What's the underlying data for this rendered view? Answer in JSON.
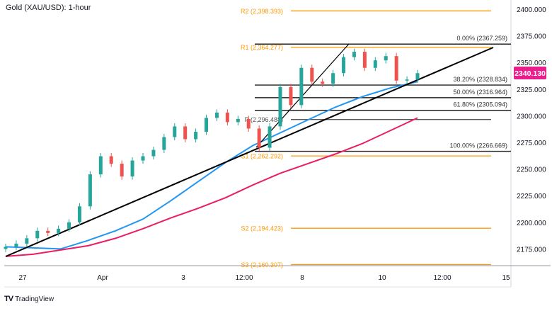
{
  "header": {
    "title": "Gold (XAU/USD): 1-hour"
  },
  "footer": {
    "brand": "TradingView"
  },
  "chart_data": {
    "type": "line",
    "title": "Gold (XAU/USD): 1-hour",
    "ylim": [
      2160,
      2408
    ],
    "y_ticks": [
      "2400.000",
      "2375.000",
      "2350.000",
      "2325.000",
      "2300.000",
      "2275.000",
      "2250.000",
      "2225.000",
      "2200.000",
      "2175.000"
    ],
    "x_ticks": [
      "27",
      "Apr",
      "3",
      "12:00",
      "8",
      "10",
      "12:00",
      "15"
    ],
    "last_price": "2340.130",
    "closes": [
      2177,
      2180,
      2185,
      2192,
      2190,
      2194,
      2200,
      2215,
      2245,
      2262,
      2255,
      2243,
      2258,
      2262,
      2268,
      2280,
      2290,
      2278,
      2285,
      2298,
      2303,
      2294,
      2297,
      2288,
      2270,
      2290,
      2327,
      2310,
      2345,
      2332,
      2330,
      2340,
      2355,
      2360,
      2345,
      2352,
      2356,
      2333,
      2334,
      2340
    ],
    "series": [
      {
        "color": "#2196f3",
        "values": [
          2177,
          2176,
          2175,
          2183,
          2192,
          2203,
          2220,
          2238,
          2256,
          2272,
          2284,
          2296,
          2308,
          2318,
          2326,
          2332
        ]
      },
      {
        "color": "#e91e63",
        "values": [
          2168,
          2170,
          2174,
          2178,
          2185,
          2194,
          2204,
          2213,
          2223,
          2235,
          2246,
          2255,
          2264,
          2274,
          2286,
          2298
        ]
      }
    ],
    "fib_levels": [
      {
        "label": "0.00% (2367.259)",
        "value": 2367.259
      },
      {
        "label": "38.20% (2328.834)",
        "value": 2328.834
      },
      {
        "label": "50.00% (2316.964)",
        "value": 2316.964
      },
      {
        "label": "61.80% (2305.094)",
        "value": 2305.094
      },
      {
        "label": "100.00% (2266.669)",
        "value": 2266.669
      }
    ],
    "pivots": [
      {
        "label": "R2 (2,398.393)",
        "value": 2398.393,
        "color": "#ff9800"
      },
      {
        "label": "R1 (2,364.277)",
        "value": 2364.277,
        "color": "#ff9800"
      },
      {
        "label": "P (2,296.488)",
        "value": 2296.488,
        "color": "#555555"
      },
      {
        "label": "S1 (2,262.292)",
        "value": 2262.292,
        "color": "#ff9800"
      },
      {
        "label": "S2 (2,194.423)",
        "value": 2194.423,
        "color": "#ff9800"
      },
      {
        "label": "S3 (2,160.307)",
        "value": 2160.307,
        "color": "#ff9800"
      }
    ],
    "colors": {
      "up": "#26a69a",
      "down": "#ef5350",
      "price_tag": "#e91e8c",
      "trendline": "#000000"
    }
  }
}
